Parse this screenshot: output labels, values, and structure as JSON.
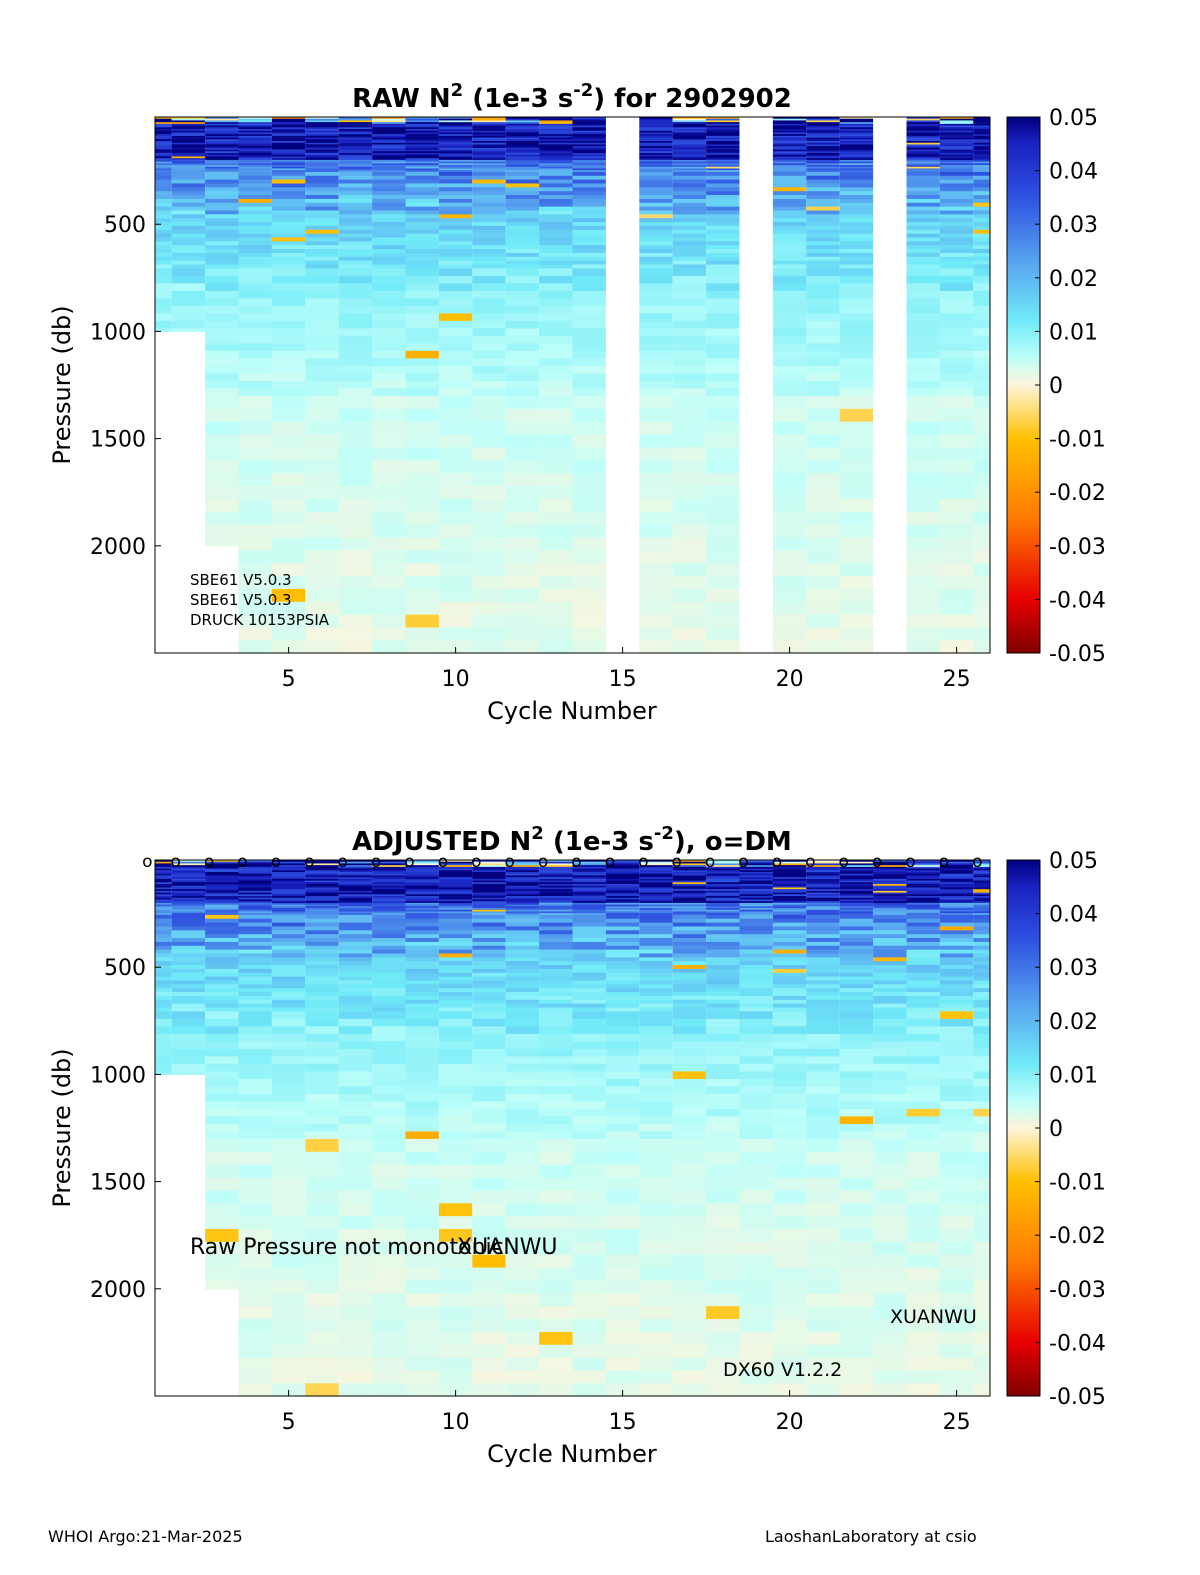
{
  "chart_data": [
    {
      "type": "heatmap",
      "panel": "top",
      "title": {
        "a": "RAW N",
        "sup1": "2",
        "b": " (1e-3 s",
        "sup2": "-2",
        "c": ") for 2902902"
      },
      "xlabel": "Cycle Number",
      "ylabel": "Pressure (db)",
      "xlim": [
        1,
        26
      ],
      "ylim": [
        2500,
        0
      ],
      "y_reversed": true,
      "xticks": [
        5,
        10,
        15,
        20,
        25
      ],
      "yticks": [
        500,
        1000,
        1500,
        2000
      ],
      "grid": false,
      "missing_cycles": [
        15,
        19,
        23
      ],
      "profile_depths": [
        [
          1,
          1000
        ],
        [
          2,
          1000
        ],
        [
          3,
          2000
        ]
      ],
      "default_profile_depth": 2500,
      "annotations": [
        {
          "text": "SBE61 V5.0.3",
          "size": "small"
        },
        {
          "text": "SBE61 V5.0.3",
          "size": "small"
        },
        {
          "text": "DRUCK 10153PSIA",
          "size": "small"
        }
      ]
    },
    {
      "type": "heatmap",
      "panel": "bottom",
      "title": {
        "a": "ADJUSTED N",
        "sup1": "2",
        "b": " (1e-3 s",
        "sup2": "-2",
        "c": "), o=DM"
      },
      "xlabel": "Cycle Number",
      "ylabel": "Pressure (db)",
      "xlim": [
        1,
        26
      ],
      "ylim": [
        2500,
        0
      ],
      "y_reversed": true,
      "xticks": [
        5,
        10,
        15,
        20,
        25
      ],
      "yticks": [
        500,
        1000,
        1500,
        2000
      ],
      "grid": false,
      "missing_cycles": [],
      "profile_depths": [
        [
          1,
          1000
        ],
        [
          2,
          1000
        ],
        [
          3,
          2000
        ]
      ],
      "default_profile_depth": 2500,
      "dm_markers": {
        "symbol": "o",
        "cycles": [
          1,
          2,
          3,
          4,
          5,
          6,
          7,
          8,
          9,
          10,
          11,
          12,
          13,
          14,
          15,
          16,
          17,
          18,
          19,
          20,
          21,
          22,
          23,
          24,
          25,
          26
        ]
      },
      "annotations": [
        {
          "text": "Raw Pressure not monotonic",
          "size": "large"
        },
        {
          "text": "XUANWU",
          "size": "large"
        },
        {
          "text": "XUANWU",
          "size": "medium"
        },
        {
          "text": "DX60 V1.2.2",
          "size": "medium"
        }
      ]
    }
  ],
  "colorbar": {
    "ticks": [
      "0.05",
      "0.04",
      "0.03",
      "0.02",
      "0.01",
      "0",
      "-0.01",
      "-0.02",
      "-0.03",
      "-0.04",
      "-0.05"
    ],
    "range": [
      -0.05,
      0.05
    ],
    "colors": {
      "neg_max": "#800000",
      "neg_strong": "#e60000",
      "neg_mid": "#ff7a00",
      "neg_low": "#ffc000",
      "zero": "#fff5dc",
      "pos_low": "#e6fff3",
      "pos_cyan": "#a6fbfa",
      "pos_mid": "#5aaaf0",
      "pos_strong": "#2030d8",
      "pos_max": "#000080"
    }
  },
  "footer": {
    "left": "WHOI Argo:21-Mar-2025",
    "right": "LaoshanLaboratory at csio"
  }
}
